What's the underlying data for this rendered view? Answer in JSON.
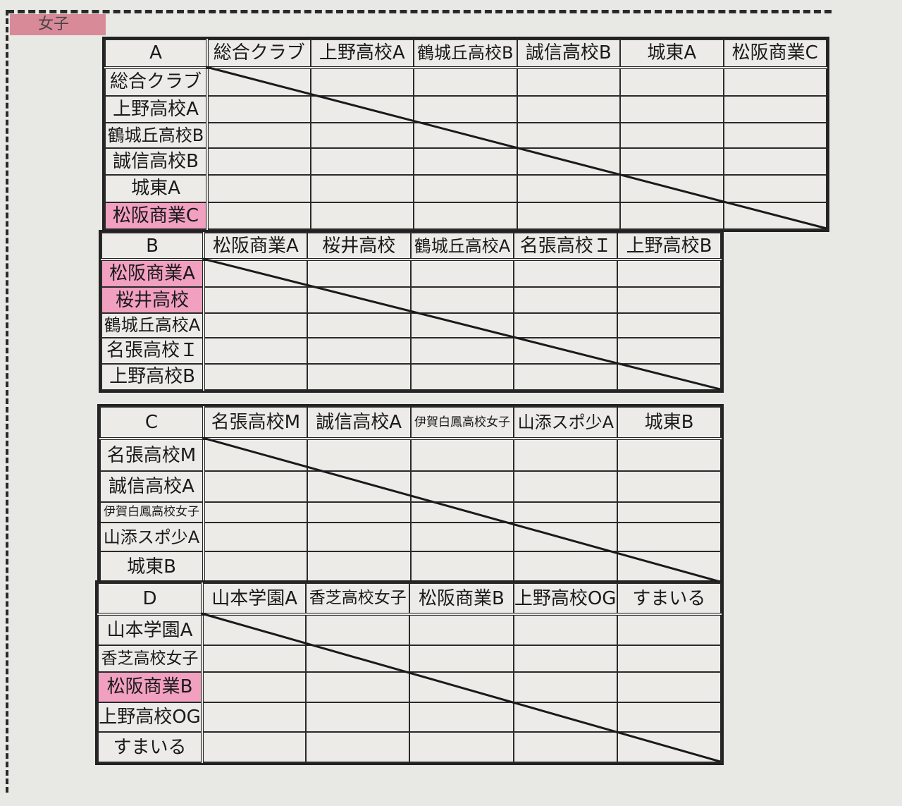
{
  "section_label": "女子",
  "highlight_color": "#f2a0bf",
  "groups": [
    {
      "name": "A",
      "teams": [
        "総合クラブ",
        "上野高校A",
        "鶴城丘高校B",
        "誠信高校B",
        "城東A",
        "松阪商業C"
      ],
      "highlighted": [
        "松阪商業C"
      ]
    },
    {
      "name": "B",
      "teams": [
        "松阪商業A",
        "桜井高校",
        "鶴城丘高校A",
        "名張高校Ｉ",
        "上野高校B"
      ],
      "highlighted": [
        "松阪商業A",
        "桜井高校"
      ]
    },
    {
      "name": "C",
      "teams": [
        "名張高校M",
        "誠信高校A",
        "伊賀白鳳高校女子",
        "山添スポ少A",
        "城東B"
      ],
      "highlighted": []
    },
    {
      "name": "D",
      "teams": [
        "山本学園A",
        "香芝高校女子",
        "松阪商業B",
        "上野高校OG",
        "すまいる"
      ],
      "highlighted": [
        "松阪商業B"
      ]
    }
  ]
}
